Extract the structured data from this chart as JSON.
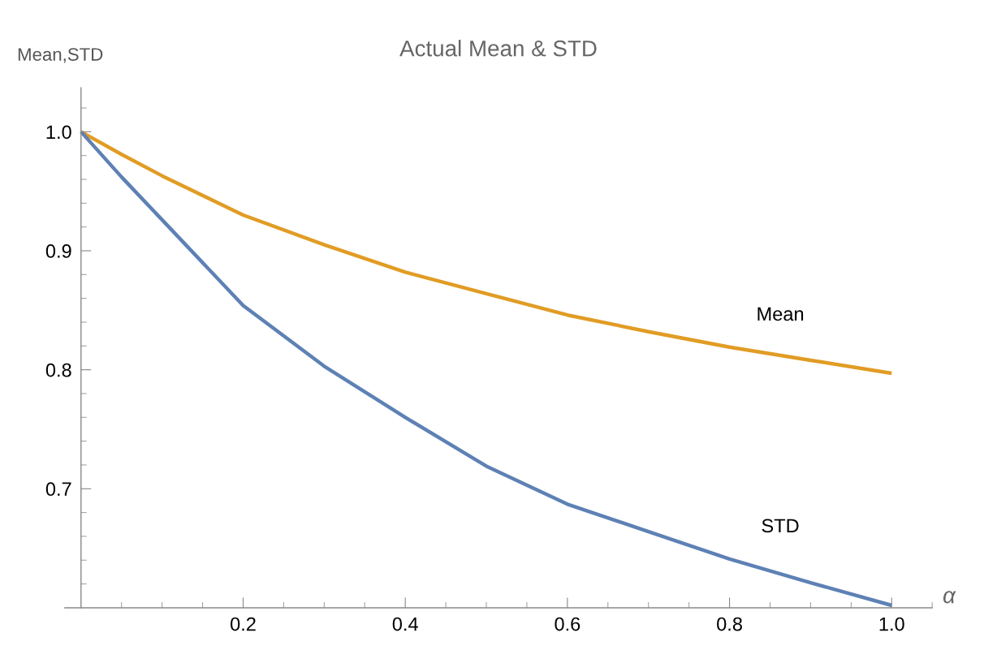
{
  "chart_data": {
    "type": "line",
    "title": "Actual Mean & STD",
    "xlabel": "α",
    "ylabel": "Mean,STD",
    "x": [
      0,
      0.05,
      0.1,
      0.2,
      0.3,
      0.4,
      0.5,
      0.6,
      0.7,
      0.8,
      0.9,
      1.0
    ],
    "series": [
      {
        "name": "Mean",
        "color": "#e19c24",
        "values": [
          1.0,
          0.981,
          0.963,
          0.93,
          0.905,
          0.882,
          0.864,
          0.846,
          0.832,
          0.819,
          0.808,
          0.797
        ]
      },
      {
        "name": "STD",
        "color": "#5e81b5",
        "values": [
          1.0,
          0.962,
          0.926,
          0.854,
          0.803,
          0.76,
          0.719,
          0.687,
          0.664,
          0.641,
          0.621,
          0.602
        ]
      }
    ],
    "xlim": [
      -0.02,
      1.05
    ],
    "ylim": [
      0.6,
      1.037
    ],
    "xticks": [
      {
        "value": 0.05,
        "label": null
      },
      {
        "value": 0.1,
        "label": null
      },
      {
        "value": 0.15,
        "label": null
      },
      0.2,
      {
        "value": 0.25,
        "label": null
      },
      {
        "value": 0.3,
        "label": null
      },
      {
        "value": 0.35,
        "label": null
      },
      0.4,
      {
        "value": 0.45,
        "label": null
      },
      {
        "value": 0.5,
        "label": null
      },
      {
        "value": 0.55,
        "label": null
      },
      0.6,
      {
        "value": 0.65,
        "label": null
      },
      {
        "value": 0.7,
        "label": null
      },
      {
        "value": 0.75,
        "label": null
      },
      0.8,
      {
        "value": 0.85,
        "label": null
      },
      {
        "value": 0.9,
        "label": null
      },
      {
        "value": 0.95,
        "label": null
      },
      {
        "value": 1.0,
        "label": "1.0"
      },
      {
        "value": 1.05,
        "label": null
      }
    ],
    "yticks": [
      {
        "value": 0.62,
        "label": null
      },
      {
        "value": 0.64,
        "label": null
      },
      {
        "value": 0.66,
        "label": null
      },
      {
        "value": 0.68,
        "label": null
      },
      0.7,
      {
        "value": 0.72,
        "label": null
      },
      {
        "value": 0.74,
        "label": null
      },
      {
        "value": 0.76,
        "label": null
      },
      {
        "value": 0.78,
        "label": null
      },
      0.8,
      {
        "value": 0.82,
        "label": null
      },
      {
        "value": 0.84,
        "label": null
      },
      {
        "value": 0.86,
        "label": null
      },
      {
        "value": 0.88,
        "label": null
      },
      0.9,
      {
        "value": 0.92,
        "label": null
      },
      {
        "value": 0.94,
        "label": null
      },
      {
        "value": 0.96,
        "label": null
      },
      {
        "value": 0.98,
        "label": null
      },
      {
        "value": 1.0,
        "label": "1.0"
      },
      {
        "value": 1.02,
        "label": null
      }
    ],
    "grid": false,
    "legend": false,
    "line_style": "solid",
    "marker": "none"
  }
}
